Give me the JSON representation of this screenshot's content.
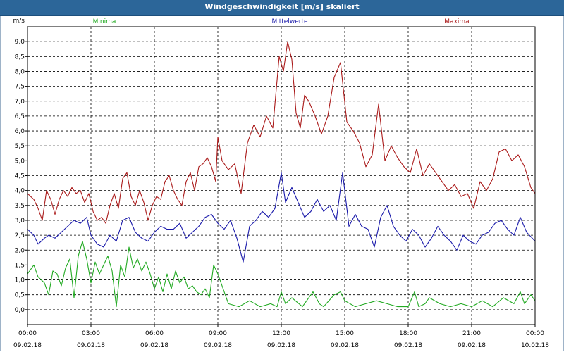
{
  "window": {
    "title": "Windgeschwindigkeit [m/s] skaliert"
  },
  "chart_data": {
    "type": "line",
    "title": "Windgeschwindigkeit [m/s] skaliert",
    "ylabel": "m/s",
    "ylim": [
      -0.5,
      9.5
    ],
    "yticks": [
      "0,0",
      "0,5",
      "1,0",
      "1,5",
      "2,0",
      "2,5",
      "3,0",
      "3,5",
      "4,0",
      "4,5",
      "5,0",
      "5,5",
      "6,0",
      "6,5",
      "7,0",
      "7,5",
      "8,0",
      "8,5",
      "9,0"
    ],
    "xlim_hours": [
      0,
      24
    ],
    "xticks": [
      {
        "time": "00:00",
        "date": "09.02.18"
      },
      {
        "time": "03:00",
        "date": "09.02.18"
      },
      {
        "time": "06:00",
        "date": "09.02.18"
      },
      {
        "time": "09:00",
        "date": "09.02.18"
      },
      {
        "time": "12:00",
        "date": "09.02.18"
      },
      {
        "time": "15:00",
        "date": "09.02.18"
      },
      {
        "time": "18:00",
        "date": "09.02.18"
      },
      {
        "time": "21:00",
        "date": "09.02.18"
      },
      {
        "time": "00:00",
        "date": "10.02.18"
      }
    ],
    "grid": true,
    "legend_position": "top",
    "series": [
      {
        "name": "Minima",
        "color": "#22aa22",
        "x": [
          0,
          0.3,
          0.5,
          0.8,
          1.0,
          1.2,
          1.4,
          1.6,
          1.8,
          2.0,
          2.2,
          2.4,
          2.6,
          2.8,
          3.0,
          3.2,
          3.4,
          3.6,
          3.8,
          4.0,
          4.2,
          4.4,
          4.6,
          4.8,
          5.0,
          5.2,
          5.4,
          5.6,
          5.8,
          6.0,
          6.2,
          6.4,
          6.6,
          6.8,
          7.0,
          7.2,
          7.4,
          7.6,
          7.8,
          8.0,
          8.2,
          8.4,
          8.6,
          8.8,
          9.0,
          9.2,
          9.5,
          10.0,
          10.5,
          11.0,
          11.5,
          11.8,
          12.0,
          12.2,
          12.5,
          13.0,
          13.5,
          13.8,
          14.0,
          14.5,
          14.8,
          15.0,
          15.5,
          16.0,
          16.5,
          17.0,
          17.5,
          18.0,
          18.3,
          18.5,
          18.8,
          19.0,
          19.5,
          20.0,
          20.5,
          21.0,
          21.5,
          22.0,
          22.5,
          23.0,
          23.3,
          23.5,
          23.8,
          24.0
        ],
        "y": [
          1.2,
          1.5,
          1.1,
          0.9,
          0.5,
          1.3,
          1.2,
          0.8,
          1.4,
          1.7,
          0.4,
          1.8,
          2.3,
          1.7,
          0.9,
          1.6,
          1.2,
          1.5,
          1.8,
          1.3,
          0.1,
          1.5,
          1.1,
          2.1,
          1.4,
          1.7,
          1.3,
          1.6,
          1.2,
          0.7,
          1.1,
          0.6,
          1.2,
          0.7,
          1.3,
          0.9,
          1.1,
          0.7,
          0.8,
          0.6,
          0.5,
          0.7,
          0.4,
          1.5,
          1.2,
          0.8,
          0.2,
          0.1,
          0.3,
          0.1,
          0.2,
          0.1,
          0.6,
          0.2,
          0.4,
          0.1,
          0.6,
          0.2,
          0.1,
          0.5,
          0.6,
          0.3,
          0.1,
          0.2,
          0.3,
          0.2,
          0.1,
          0.1,
          0.6,
          0.1,
          0.2,
          0.4,
          0.2,
          0.1,
          0.2,
          0.1,
          0.3,
          0.1,
          0.4,
          0.2,
          0.6,
          0.2,
          0.5,
          0.3
        ]
      },
      {
        "name": "Mittelwerte",
        "color": "#1a1aaa",
        "x": [
          0,
          0.3,
          0.5,
          0.8,
          1.0,
          1.3,
          1.6,
          1.9,
          2.2,
          2.5,
          2.8,
          3.0,
          3.3,
          3.6,
          3.9,
          4.2,
          4.5,
          4.8,
          5.1,
          5.4,
          5.7,
          6.0,
          6.3,
          6.6,
          6.9,
          7.2,
          7.5,
          7.8,
          8.1,
          8.4,
          8.7,
          9.0,
          9.3,
          9.6,
          9.9,
          10.2,
          10.5,
          10.8,
          11.1,
          11.4,
          11.7,
          12.0,
          12.2,
          12.5,
          12.8,
          13.1,
          13.4,
          13.7,
          14.0,
          14.3,
          14.6,
          14.9,
          15.2,
          15.5,
          15.8,
          16.1,
          16.4,
          16.7,
          17.0,
          17.3,
          17.6,
          17.9,
          18.2,
          18.5,
          18.8,
          19.1,
          19.4,
          19.7,
          20.0,
          20.3,
          20.6,
          20.9,
          21.2,
          21.5,
          21.8,
          22.1,
          22.4,
          22.7,
          23.0,
          23.3,
          23.6,
          24.0
        ],
        "y": [
          2.7,
          2.5,
          2.2,
          2.4,
          2.5,
          2.4,
          2.6,
          2.8,
          3.0,
          2.9,
          3.1,
          2.5,
          2.2,
          2.1,
          2.5,
          2.3,
          3.0,
          3.1,
          2.6,
          2.4,
          2.3,
          2.6,
          2.8,
          2.7,
          2.7,
          2.9,
          2.4,
          2.6,
          2.8,
          3.1,
          3.2,
          2.9,
          2.7,
          3.0,
          2.4,
          1.6,
          2.8,
          3.0,
          3.3,
          3.1,
          3.4,
          4.6,
          3.6,
          4.1,
          3.6,
          3.1,
          3.3,
          3.7,
          3.3,
          3.5,
          3.0,
          4.6,
          2.8,
          3.2,
          2.8,
          2.7,
          2.1,
          3.1,
          3.5,
          2.8,
          2.5,
          2.3,
          2.7,
          2.5,
          2.1,
          2.4,
          2.8,
          2.5,
          2.3,
          2.0,
          2.5,
          2.3,
          2.2,
          2.5,
          2.6,
          2.9,
          3.0,
          2.7,
          2.5,
          3.1,
          2.6,
          2.3
        ]
      },
      {
        "name": "Maxima",
        "color": "#aa1a1a",
        "x": [
          0,
          0.3,
          0.5,
          0.7,
          0.9,
          1.1,
          1.3,
          1.5,
          1.7,
          1.9,
          2.1,
          2.3,
          2.5,
          2.7,
          2.9,
          3.1,
          3.3,
          3.5,
          3.7,
          3.9,
          4.1,
          4.3,
          4.5,
          4.7,
          4.9,
          5.1,
          5.3,
          5.5,
          5.7,
          5.9,
          6.1,
          6.3,
          6.5,
          6.7,
          6.9,
          7.1,
          7.3,
          7.5,
          7.7,
          7.9,
          8.1,
          8.3,
          8.5,
          8.7,
          8.9,
          9.0,
          9.2,
          9.5,
          9.8,
          10.1,
          10.4,
          10.7,
          11.0,
          11.3,
          11.6,
          11.9,
          12.1,
          12.3,
          12.5,
          12.7,
          12.9,
          13.1,
          13.3,
          13.6,
          13.9,
          14.2,
          14.5,
          14.8,
          15.1,
          15.4,
          15.7,
          16.0,
          16.3,
          16.6,
          16.9,
          17.2,
          17.5,
          17.8,
          18.1,
          18.4,
          18.7,
          19.0,
          19.3,
          19.6,
          19.9,
          20.2,
          20.5,
          20.8,
          21.1,
          21.4,
          21.7,
          22.0,
          22.3,
          22.6,
          22.9,
          23.2,
          23.5,
          23.8,
          24.0
        ],
        "y": [
          3.9,
          3.7,
          3.4,
          3.0,
          4.0,
          3.7,
          3.2,
          3.7,
          4.0,
          3.8,
          4.1,
          3.9,
          4.0,
          3.6,
          3.9,
          3.3,
          3.0,
          3.1,
          2.9,
          3.5,
          3.9,
          3.4,
          4.4,
          4.6,
          3.8,
          3.5,
          4.0,
          3.6,
          3.0,
          3.5,
          3.8,
          3.7,
          4.3,
          4.5,
          4.0,
          3.7,
          3.5,
          4.3,
          4.6,
          4.0,
          4.8,
          4.9,
          5.1,
          4.8,
          4.3,
          5.8,
          5.0,
          4.7,
          4.9,
          3.9,
          5.6,
          6.2,
          5.8,
          6.5,
          6.1,
          8.5,
          8.0,
          9.0,
          8.4,
          6.6,
          6.1,
          7.2,
          7.0,
          6.5,
          5.9,
          6.5,
          7.8,
          8.3,
          6.3,
          6.0,
          5.6,
          4.8,
          5.2,
          6.9,
          5.0,
          5.5,
          5.1,
          4.8,
          4.6,
          5.4,
          4.5,
          4.9,
          4.6,
          4.3,
          4.0,
          4.2,
          3.8,
          3.9,
          3.4,
          4.3,
          4.0,
          4.4,
          5.3,
          5.4,
          5.0,
          5.2,
          4.8,
          4.1,
          3.9
        ]
      }
    ]
  }
}
